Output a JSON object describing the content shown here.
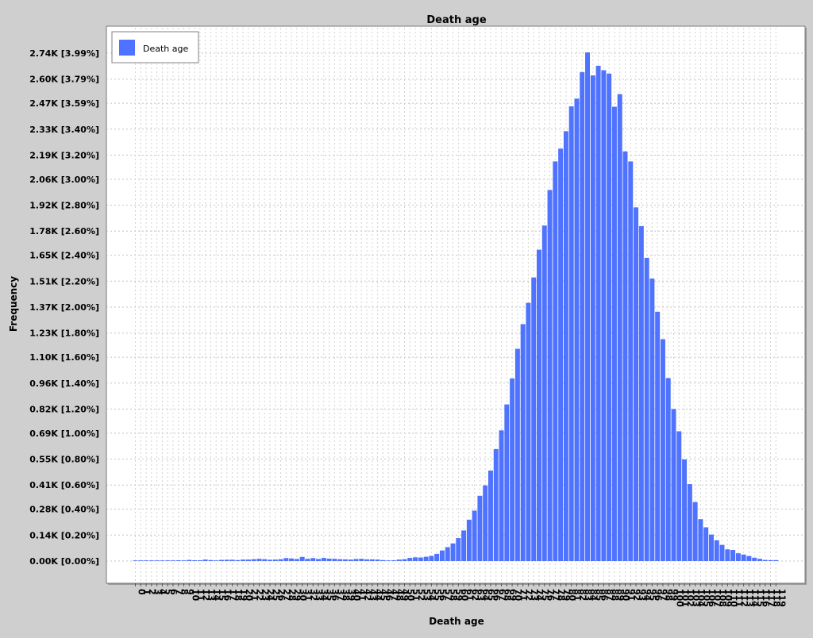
{
  "chart_data": {
    "type": "bar",
    "title": "Death age",
    "xlabel": "Death age",
    "ylabel": "Frequency",
    "legend": {
      "label": "Death age",
      "placement": "top-left",
      "color": "#4F73FF"
    },
    "bar_color": "#4F73FF",
    "grid": true,
    "ylim": [
      0,
      2.74
    ],
    "y_ticks": [
      {
        "value": 0.0,
        "label": "0.00K [0.00%]"
      },
      {
        "value": 0.14,
        "label": "0.14K [0.20%]"
      },
      {
        "value": 0.28,
        "label": "0.28K [0.40%]"
      },
      {
        "value": 0.41,
        "label": "0.41K [0.60%]"
      },
      {
        "value": 0.55,
        "label": "0.55K [0.80%]"
      },
      {
        "value": 0.69,
        "label": "0.69K [1.00%]"
      },
      {
        "value": 0.82,
        "label": "0.82K [1.20%]"
      },
      {
        "value": 0.96,
        "label": "0.96K [1.40%]"
      },
      {
        "value": 1.1,
        "label": "1.10K [1.60%]"
      },
      {
        "value": 1.23,
        "label": "1.23K [1.80%]"
      },
      {
        "value": 1.37,
        "label": "1.37K [2.00%]"
      },
      {
        "value": 1.51,
        "label": "1.51K [2.20%]"
      },
      {
        "value": 1.65,
        "label": "1.65K [2.40%]"
      },
      {
        "value": 1.78,
        "label": "1.78K [2.60%]"
      },
      {
        "value": 1.92,
        "label": "1.92K [2.80%]"
      },
      {
        "value": 2.06,
        "label": "2.06K [3.00%]"
      },
      {
        "value": 2.19,
        "label": "2.19K [3.20%]"
      },
      {
        "value": 2.33,
        "label": "2.33K [3.40%]"
      },
      {
        "value": 2.47,
        "label": "2.47K [3.59%]"
      },
      {
        "value": 2.6,
        "label": "2.60K [3.79%]"
      },
      {
        "value": 2.74,
        "label": "2.74K [3.99%]"
      }
    ],
    "categories": [
      "0",
      "1",
      "2",
      "3",
      "4",
      "5",
      "6",
      "7",
      "8",
      "9",
      "10",
      "11",
      "12",
      "13",
      "14",
      "15",
      "16",
      "17",
      "18",
      "19",
      "20",
      "21",
      "22",
      "23",
      "24",
      "25",
      "26",
      "27",
      "28",
      "29",
      "30",
      "31",
      "32",
      "33",
      "34",
      "35",
      "36",
      "37",
      "38",
      "39",
      "40",
      "41",
      "42",
      "43",
      "44",
      "45",
      "46",
      "47",
      "48",
      "49",
      "50",
      "51",
      "52",
      "53",
      "54",
      "55",
      "56",
      "57",
      "58",
      "59",
      "60",
      "61",
      "62",
      "63",
      "64",
      "65",
      "66",
      "67",
      "68",
      "69",
      "70",
      "71",
      "72",
      "73",
      "74",
      "75",
      "76",
      "77",
      "78",
      "79",
      "80",
      "81",
      "82",
      "83",
      "84",
      "85",
      "86",
      "87",
      "88",
      "89",
      "90",
      "91",
      "92",
      "93",
      "94",
      "95",
      "96",
      "97",
      "98",
      "99",
      "100",
      "101",
      "102",
      "103",
      "104",
      "105",
      "106",
      "107",
      "108",
      "109",
      "110",
      "111",
      "112",
      "113",
      "114",
      "115",
      "116",
      "117",
      "118",
      "119"
    ],
    "values": [
      0.0,
      0.0,
      0.002,
      0.002,
      0.002,
      0.003,
      0.001,
      0.003,
      0.004,
      0.003,
      0.006,
      0.004,
      0.004,
      0.008,
      0.005,
      0.003,
      0.006,
      0.007,
      0.007,
      0.005,
      0.008,
      0.008,
      0.01,
      0.012,
      0.01,
      0.007,
      0.008,
      0.01,
      0.016,
      0.014,
      0.011,
      0.022,
      0.012,
      0.016,
      0.011,
      0.017,
      0.013,
      0.012,
      0.01,
      0.009,
      0.008,
      0.011,
      0.012,
      0.009,
      0.009,
      0.008,
      0.005,
      0.002,
      0.004,
      0.008,
      0.01,
      0.017,
      0.02,
      0.019,
      0.023,
      0.028,
      0.039,
      0.057,
      0.075,
      0.095,
      0.124,
      0.165,
      0.223,
      0.272,
      0.352,
      0.408,
      0.488,
      0.604,
      0.705,
      0.845,
      0.985,
      1.145,
      1.278,
      1.393,
      1.53,
      1.68,
      1.81,
      2.002,
      2.156,
      2.225,
      2.319,
      2.453,
      2.495,
      2.638,
      2.744,
      2.62,
      2.672,
      2.648,
      2.63,
      2.451,
      2.519,
      2.21,
      2.156,
      1.908,
      1.807,
      1.636,
      1.524,
      1.345,
      1.197,
      0.987,
      0.82,
      0.7,
      0.548,
      0.415,
      0.318,
      0.226,
      0.182,
      0.143,
      0.112,
      0.087,
      0.063,
      0.06,
      0.042,
      0.035,
      0.027,
      0.018,
      0.012,
      0.006,
      0.005,
      0.005
    ]
  }
}
